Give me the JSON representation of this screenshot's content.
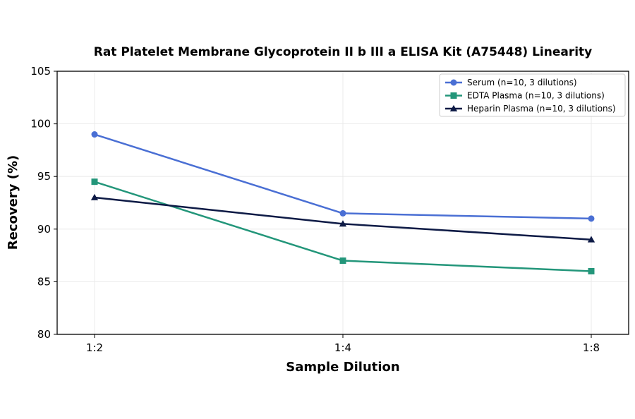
{
  "chart_data": {
    "type": "line",
    "title": "Rat Platelet Membrane Glycoprotein II b III a ELISA Kit (A75448) Linearity",
    "xlabel": "Sample Dilution",
    "ylabel": "Recovery (%)",
    "categories": [
      "1:2",
      "1:4",
      "1:8"
    ],
    "ylim": [
      80,
      105
    ],
    "yticks": [
      80,
      85,
      90,
      95,
      100,
      105
    ],
    "grid": true,
    "legend_position": "top-right",
    "series": [
      {
        "name": "Serum (n=10, 3 dilutions)",
        "values": [
          99.0,
          91.5,
          91.0
        ],
        "color": "#4a6fd4",
        "marker": "circle"
      },
      {
        "name": "EDTA Plasma (n=10, 3 dilutions)",
        "values": [
          94.5,
          87.0,
          86.0
        ],
        "color": "#23967a",
        "marker": "square"
      },
      {
        "name": "Heparin Plasma (n=10, 3 dilutions)",
        "values": [
          93.0,
          90.5,
          89.0
        ],
        "color": "#0d1a45",
        "marker": "triangle"
      }
    ]
  }
}
